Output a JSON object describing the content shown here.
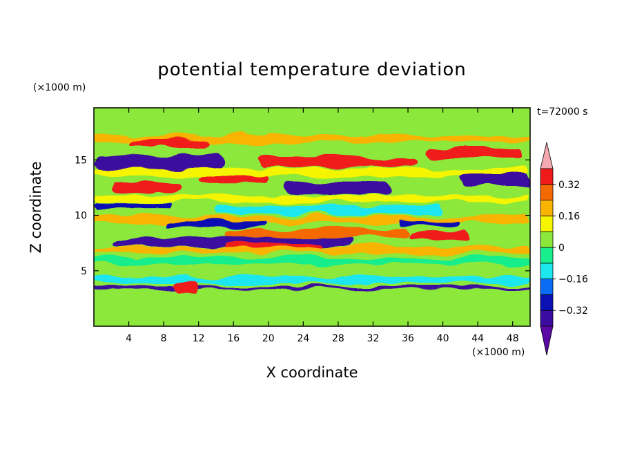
{
  "chart_data": {
    "type": "heatmap",
    "title": "potential temperature deviation",
    "xlabel": "X coordinate",
    "ylabel": "Z coordinate",
    "x_unit_label": "(×1000 m)",
    "y_unit_label": "(×1000 m)",
    "time_label": "t=72000 s",
    "xlim": [
      0,
      50
    ],
    "ylim": [
      0,
      19.7
    ],
    "x_ticks": [
      4,
      8,
      12,
      16,
      20,
      24,
      28,
      32,
      36,
      40,
      44,
      48
    ],
    "x_tick_labels": [
      "4",
      "8",
      "12",
      "16",
      "20",
      "24",
      "28",
      "32",
      "36",
      "40",
      "44",
      "48"
    ],
    "y_ticks": [
      5,
      10,
      15
    ],
    "y_tick_labels": [
      "5",
      "10",
      "15"
    ],
    "colorbar": {
      "levels": [
        -0.4,
        -0.32,
        -0.24,
        -0.16,
        -0.08,
        0,
        0.08,
        0.16,
        0.24,
        0.32,
        0.4
      ],
      "labeled_levels": [
        0.32,
        0.16,
        0,
        -0.16,
        -0.32
      ],
      "labels": [
        "0.32",
        "0.16",
        "0",
        "−0.16",
        "−0.32"
      ],
      "colors_low_to_high": [
        "#5a0aa3",
        "#3c0ca0",
        "#0a10b4",
        "#0a6cf5",
        "#1ce6ee",
        "#18ee8c",
        "#8ce83a",
        "#f5f500",
        "#f8b400",
        "#f56a00",
        "#f01a1a",
        "#f4a8b0"
      ],
      "extend": "both"
    },
    "bands": [
      {
        "z": 17.8,
        "x0": 0,
        "x1": 50,
        "value": 0.05,
        "thick": 1.8
      },
      {
        "z": 16.9,
        "x0": 0,
        "x1": 50,
        "value": 0.2,
        "thick": 0.6
      },
      {
        "z": 16.5,
        "x0": 4,
        "x1": 13,
        "value": 0.38,
        "thick": 0.7
      },
      {
        "z": 15.6,
        "x0": 38,
        "x1": 49,
        "value": 0.38,
        "thick": 0.9
      },
      {
        "z": 14.8,
        "x0": 0,
        "x1": 15,
        "value": -0.38,
        "thick": 1.3
      },
      {
        "z": 14.8,
        "x0": 19,
        "x1": 37,
        "value": 0.32,
        "thick": 0.9
      },
      {
        "z": 14.9,
        "x0": 23,
        "x1": 32,
        "value": 0.38,
        "thick": 0.5
      },
      {
        "z": 13.9,
        "x0": 0,
        "x1": 50,
        "value": 0.1,
        "thick": 0.7
      },
      {
        "z": 13.3,
        "x0": 12,
        "x1": 20,
        "value": 0.36,
        "thick": 0.7
      },
      {
        "z": 13.2,
        "x0": 42,
        "x1": 50,
        "value": -0.35,
        "thick": 0.9
      },
      {
        "z": 12.5,
        "x0": 2,
        "x1": 10,
        "value": 0.36,
        "thick": 1.0
      },
      {
        "z": 12.4,
        "x0": 22,
        "x1": 34,
        "value": -0.35,
        "thick": 1.0
      },
      {
        "z": 11.5,
        "x0": 0,
        "x1": 50,
        "value": 0.12,
        "thick": 0.6
      },
      {
        "z": 10.9,
        "x0": 0,
        "x1": 9,
        "value": -0.3,
        "thick": 0.5
      },
      {
        "z": 10.5,
        "x0": 14,
        "x1": 40,
        "value": -0.14,
        "thick": 0.8
      },
      {
        "z": 9.6,
        "x0": 0,
        "x1": 50,
        "value": 0.18,
        "thick": 0.6
      },
      {
        "z": 9.2,
        "x0": 8,
        "x1": 20,
        "value": -0.3,
        "thick": 0.5
      },
      {
        "z": 9.2,
        "x0": 35,
        "x1": 42,
        "value": -0.3,
        "thick": 0.5
      },
      {
        "z": 8.4,
        "x0": 15,
        "x1": 36,
        "value": 0.28,
        "thick": 0.8
      },
      {
        "z": 8.2,
        "x0": 36,
        "x1": 43,
        "value": 0.38,
        "thick": 0.6
      },
      {
        "z": 7.6,
        "x0": 2,
        "x1": 30,
        "value": -0.38,
        "thick": 0.8
      },
      {
        "z": 7.2,
        "x0": 15,
        "x1": 26,
        "value": 0.36,
        "thick": 0.5
      },
      {
        "z": 6.9,
        "x0": 0,
        "x1": 50,
        "value": 0.2,
        "thick": 0.5
      },
      {
        "z": 5.9,
        "x0": 0,
        "x1": 50,
        "value": -0.06,
        "thick": 0.6
      },
      {
        "z": 4.2,
        "x0": 0,
        "x1": 50,
        "value": -0.1,
        "thick": 0.6
      },
      {
        "z": 3.5,
        "x0": 0,
        "x1": 50,
        "value": -0.38,
        "thick": 0.3
      },
      {
        "z": 3.6,
        "x0": 9,
        "x1": 12,
        "value": 0.38,
        "thick": 1.0
      }
    ]
  }
}
